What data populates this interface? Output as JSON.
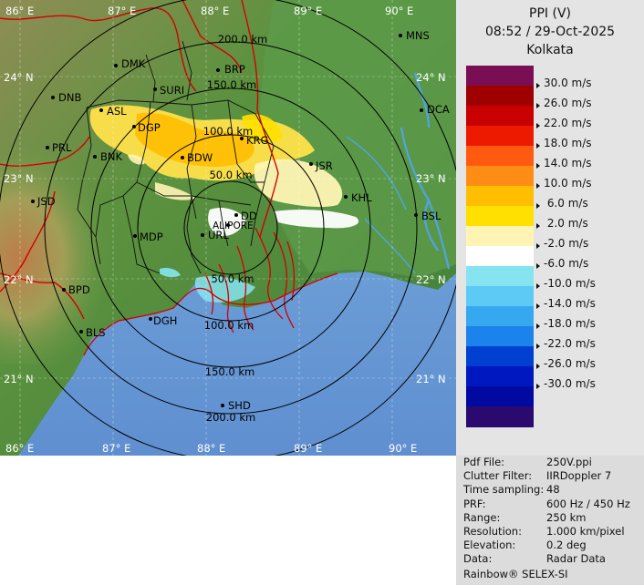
{
  "header": {
    "product": "PPI (V)",
    "datetime": "08:52 / 29-Oct-2025",
    "station": "Kolkata"
  },
  "legend": {
    "labels": [
      "30.0 m/s",
      "26.0 m/s",
      "22.0 m/s",
      "18.0 m/s",
      "14.0 m/s",
      "10.0 m/s",
      " 6.0 m/s",
      " 2.0 m/s",
      "-2.0 m/s",
      "-6.0 m/s",
      "-10.0 m/s",
      "-14.0 m/s",
      "-18.0 m/s",
      "-22.0 m/s",
      "-26.0 m/s",
      "-30.0 m/s"
    ],
    "colors": [
      "#7a0e55",
      "#9e0000",
      "#c80000",
      "#ee1a00",
      "#ff5a10",
      "#ff8c14",
      "#ffbe00",
      "#ffe000",
      "#fff4b4",
      "#ffffff",
      "#86e4f0",
      "#5ccaf4",
      "#36a8f0",
      "#1c82ec",
      "#0040d0",
      "#0018c0",
      "#000aa0",
      "#2a0a6e"
    ]
  },
  "map": {
    "top_lon_labels": [
      "86° E",
      "87° E",
      "88° E",
      "89° E",
      "90° E"
    ],
    "bottom_lon_labels": [
      "86° E",
      "87° E",
      "88° E",
      "89° E",
      "90° E"
    ],
    "left_lat_labels": [
      "24° N",
      "23° N",
      "22° N",
      "21° N"
    ],
    "right_lat_labels": [
      "24° N",
      "23° N",
      "22° N",
      "21° N"
    ],
    "range_ring_labels": [
      "50.0 km",
      "100.0 km",
      "150.0 km",
      "200.0 km"
    ],
    "lower_range_ring_labels": [
      "50.0 km",
      "100.0 km",
      "150.0 km",
      "200.0 km"
    ],
    "cities": [
      "MNS",
      "DMK",
      "BRP",
      "DNB",
      "SURI",
      "ASL",
      "DCA",
      "DGP",
      "KRG",
      "PRL",
      "BNK",
      "BDW",
      "JSR",
      "JSD",
      "KHL",
      "DD",
      "BSL",
      "ALIPORE",
      "MDP",
      "URL",
      "BPD",
      "DGH",
      "BLS",
      "SHD"
    ],
    "colors": {
      "land": "#4f8a3f",
      "sea": "#6fa0d8",
      "ring": "#000000",
      "coast": "#d40000"
    }
  },
  "info": {
    "rows": [
      {
        "label": "Pdf File:",
        "value": "250V.ppi"
      },
      {
        "label": "Clutter Filter:",
        "value": "IIRDoppler 7"
      },
      {
        "label": "Time sampling:",
        "value": "48"
      },
      {
        "label": "PRF:",
        "value": "600 Hz / 450 Hz"
      },
      {
        "label": "Range:",
        "value": "250 km"
      },
      {
        "label": "Resolution:",
        "value": "1.000 km/pixel"
      },
      {
        "label": "Elevation:",
        "value": "0.2 deg"
      },
      {
        "label": "Data:",
        "value": "Radar Data"
      }
    ],
    "footer": "Rainbow® SELEX-SI"
  }
}
